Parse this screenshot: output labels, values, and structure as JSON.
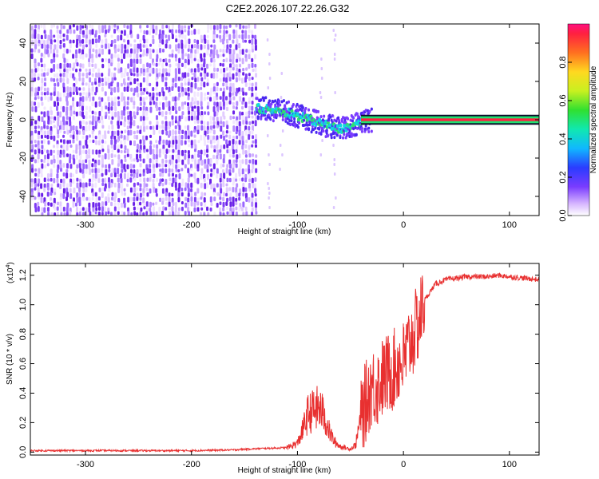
{
  "title": "C2E2.2026.107.22.26.G32",
  "chart_data": [
    {
      "type": "heatmap",
      "name": "spectrogram",
      "xlabel": "Height of straight line (km)",
      "ylabel": "Frequency (Hz)",
      "xlim": [
        -352,
        128
      ],
      "ylim": [
        -50,
        50
      ],
      "xticks": [
        -300,
        -200,
        -100,
        0,
        100
      ],
      "yticks": [
        -40,
        -20,
        0,
        20,
        40
      ],
      "xtick_labels": [
        "-300",
        "-200",
        "-100",
        "0",
        "100"
      ],
      "ytick_labels": [
        "-40",
        "-20",
        "0",
        "20",
        "40"
      ],
      "noise_region_end_x": -140,
      "signal_track": {
        "x": [
          -140,
          -120,
          -100,
          -80,
          -60,
          -50,
          -40,
          -30,
          -20,
          -10,
          0,
          50,
          128
        ],
        "y": [
          6,
          5,
          2,
          -2,
          -5,
          -3,
          -1,
          0,
          1,
          0,
          0,
          0,
          0
        ]
      },
      "colorbar": {
        "label": "Normalized spectral amplitude",
        "range": [
          0,
          1
        ],
        "ticks": [
          0.0,
          0.2,
          0.4,
          0.6,
          0.8
        ],
        "tick_labels": [
          "0.0",
          "0.2",
          "0.4",
          "0.6",
          "0.8"
        ]
      }
    },
    {
      "type": "line",
      "name": "snr",
      "xlabel": "Height of straight line (km)",
      "ylabel": "SNR (10 * v/v)",
      "y_multiplier": "(x10",
      "y_multiplier_exp": "4",
      "y_multiplier_close": ")",
      "xlim": [
        -352,
        128
      ],
      "ylim": [
        -0.02,
        1.28
      ],
      "xticks": [
        -300,
        -200,
        -100,
        0,
        100
      ],
      "yticks": [
        0.0,
        0.2,
        0.4,
        0.6,
        0.8,
        1.0,
        1.2
      ],
      "xtick_labels": [
        "-300",
        "-200",
        "-100",
        "0",
        "100"
      ],
      "ytick_labels": [
        "0.0",
        "0.2",
        "0.4",
        "0.6",
        "0.8",
        "1.0",
        "1.2"
      ],
      "color": "#e83030",
      "series": [
        {
          "name": "SNR",
          "x": [
            -352,
            -300,
            -250,
            -200,
            -160,
            -150,
            -110,
            -100,
            -95,
            -90,
            -85,
            -80,
            -75,
            -70,
            -65,
            -60,
            -55,
            -50,
            -45,
            -40,
            -35,
            -30,
            -25,
            -20,
            -15,
            -10,
            -5,
            0,
            5,
            10,
            15,
            20,
            30,
            40,
            60,
            80,
            90,
            100,
            128
          ],
          "y": [
            0.01,
            0.01,
            0.01,
            0.01,
            0.015,
            0.02,
            0.03,
            0.06,
            0.15,
            0.26,
            0.28,
            0.3,
            0.25,
            0.14,
            0.07,
            0.04,
            0.03,
            0.02,
            0.05,
            0.25,
            0.35,
            0.45,
            0.44,
            0.5,
            0.53,
            0.55,
            0.6,
            0.62,
            0.72,
            0.8,
            0.9,
            1.03,
            1.14,
            1.17,
            1.19,
            1.19,
            1.2,
            1.19,
            1.17
          ]
        }
      ]
    }
  ]
}
